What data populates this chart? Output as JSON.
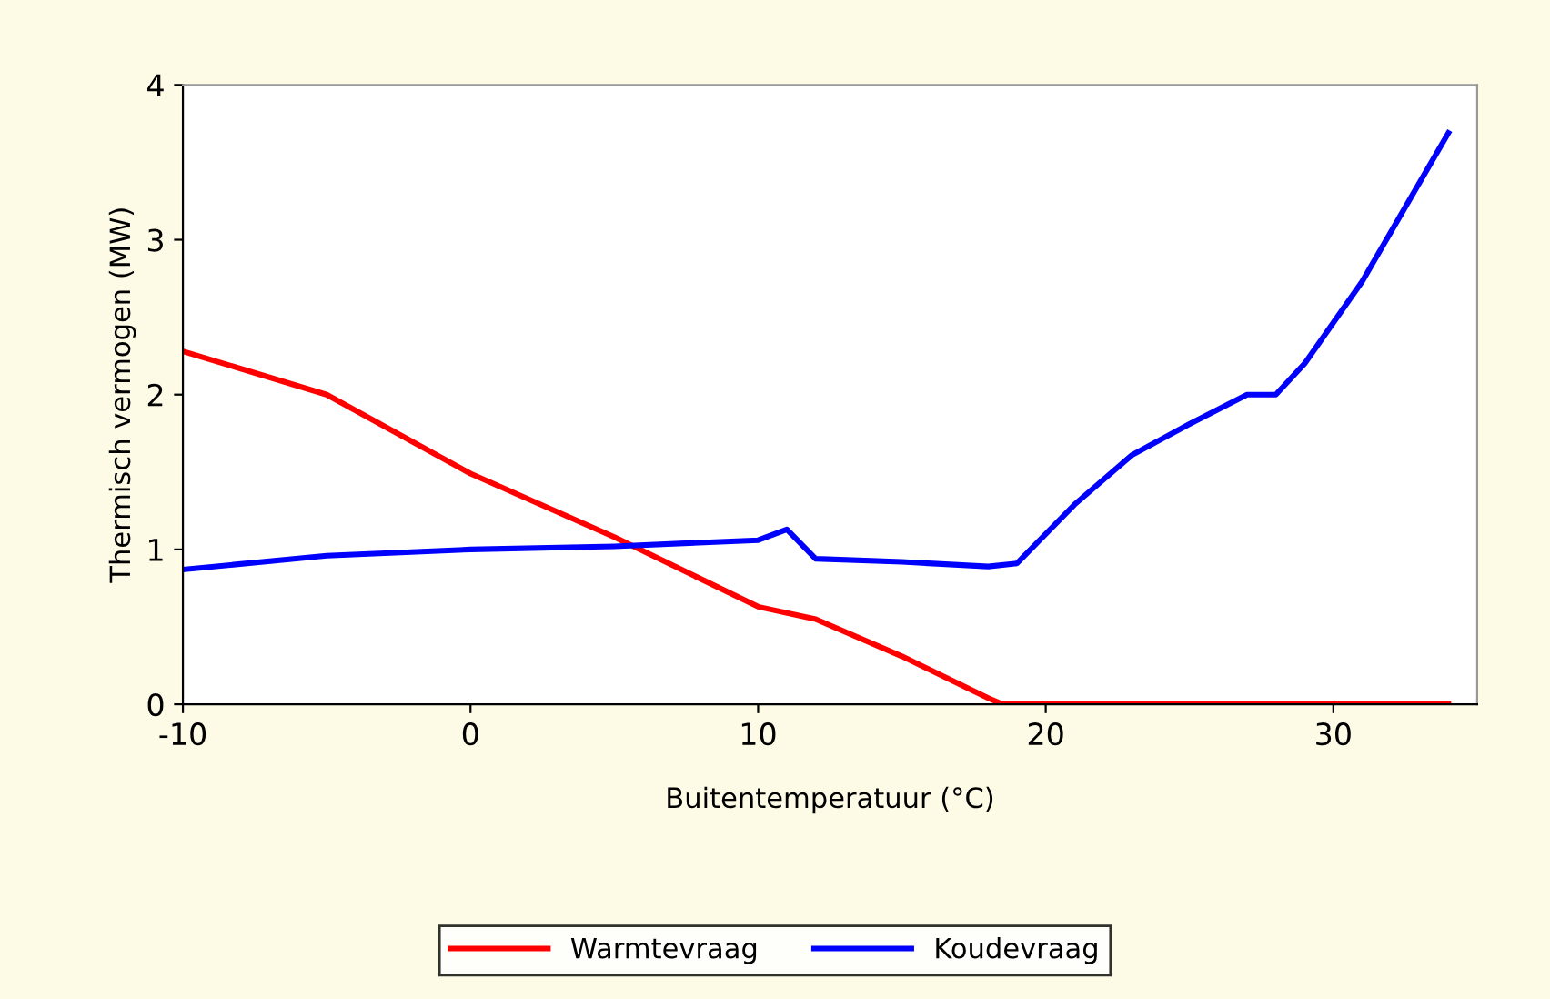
{
  "chart_data": {
    "type": "line",
    "xlabel": "Buitentemperatuur (°C)",
    "ylabel": "Thermisch vermogen (MW)",
    "xlim": [
      -10,
      35
    ],
    "xticks": [
      -10,
      0,
      10,
      20,
      30
    ],
    "ylim": [
      0,
      4
    ],
    "yticks": [
      0,
      1,
      2,
      3,
      4
    ],
    "grid": false,
    "legend": "bottom",
    "marker": "none",
    "line_style": "solid",
    "series": [
      {
        "name": "Warmtevraag",
        "color": "#ff0000",
        "x": [
          -10,
          -5,
          0,
          5,
          10,
          12,
          15,
          18,
          18.5,
          34
        ],
        "values": [
          2.28,
          2.0,
          1.49,
          1.08,
          0.63,
          0.55,
          0.31,
          0.04,
          0,
          0
        ]
      },
      {
        "name": "Koudevraag",
        "color": "#0000ff",
        "x": [
          -10,
          -5,
          0,
          5,
          10,
          11,
          12,
          15,
          18,
          19,
          21,
          23,
          25,
          27,
          28,
          29,
          31,
          33,
          34
        ],
        "values": [
          0.87,
          0.96,
          1.0,
          1.02,
          1.06,
          1.13,
          0.94,
          0.92,
          0.89,
          0.91,
          1.29,
          1.61,
          1.81,
          2.0,
          2.0,
          2.2,
          2.73,
          3.37,
          3.69
        ]
      }
    ]
  }
}
